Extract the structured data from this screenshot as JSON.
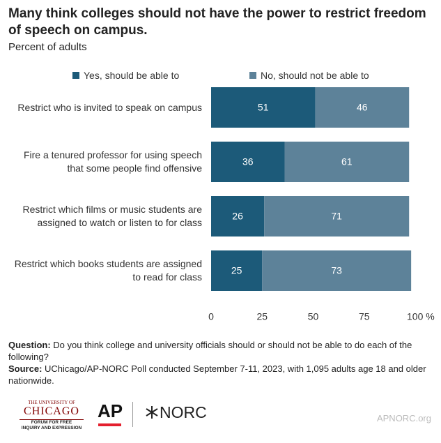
{
  "chart_data": {
    "type": "stacked-bar-horizontal",
    "title": "Many think colleges should not have the power to restrict freedom of speech on campus.",
    "subtitle": "Percent of adults",
    "categories": [
      "Restrict who is invited to speak on campus",
      "Fire a tenured professor for using speech\nthat some people find offensive",
      "Restrict which films or music students are\nassigned to watch or listen to for class",
      "Restrict which books students are assigned\nto read for class"
    ],
    "series": [
      {
        "name": "Yes, should be able to",
        "color": "#1c5a79",
        "values": [
          51,
          36,
          26,
          25
        ]
      },
      {
        "name": "No, should not be able to",
        "color": "#5d8299",
        "values": [
          46,
          61,
          71,
          73
        ]
      }
    ],
    "xlim": [
      0,
      100
    ],
    "xticks": [
      0,
      25,
      50,
      75,
      {
        "value": 100,
        "label": "100 %"
      }
    ],
    "grid": false,
    "legend": "top"
  },
  "notes": {
    "question_label": "Question:",
    "question_text": "Do you think college and university officials should or should not be able to do each of the following?",
    "source_label": "Source:",
    "source_text": "UChicago/AP-NORC Poll conducted September 7-11, 2023, with 1,095 adults age 18 and older nationwide."
  },
  "logos": {
    "uchicago_top": "THE UNIVERSITY OF",
    "uchicago_name": "CHICAGO",
    "uchicago_forum1": "FORUM FOR FREE",
    "uchicago_forum2": "INQUIRY AND EXPRESSION",
    "ap": "AP",
    "norc": "NORC",
    "website": "APNORC.org"
  }
}
